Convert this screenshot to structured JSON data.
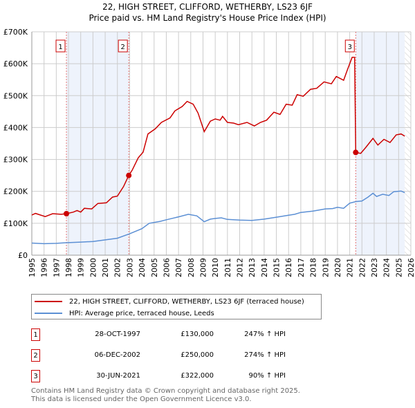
{
  "title": "22, HIGH STREET, CLIFFORD, WETHERBY, LS23 6JF",
  "subtitle": "Price paid vs. HM Land Registry's House Price Index (HPI)",
  "colors": {
    "property": "#cc0000",
    "hpi": "#5b8fd4",
    "shade": "#eef3fc"
  },
  "chart_data": {
    "type": "line",
    "title": "22, HIGH STREET, CLIFFORD, WETHERBY, LS23 6JF — Price paid vs. HM Land Registry's House Price Index (HPI)",
    "xlim": [
      1995,
      2026
    ],
    "ylim": [
      0,
      700000
    ],
    "x_ticks": [
      "1995",
      "1996",
      "1997",
      "1998",
      "1999",
      "2000",
      "2001",
      "2002",
      "2003",
      "2004",
      "2005",
      "2006",
      "2007",
      "2008",
      "2009",
      "2010",
      "2011",
      "2012",
      "2013",
      "2014",
      "2015",
      "2016",
      "2017",
      "2018",
      "2019",
      "2020",
      "2021",
      "2022",
      "2023",
      "2024",
      "2025",
      "2026"
    ],
    "y_ticks": [
      {
        "v": 0,
        "label": "£0"
      },
      {
        "v": 100000,
        "label": "£100K"
      },
      {
        "v": 200000,
        "label": "£200K"
      },
      {
        "v": 300000,
        "label": "£300K"
      },
      {
        "v": 400000,
        "label": "£400K"
      },
      {
        "v": 500000,
        "label": "£500K"
      },
      {
        "v": 600000,
        "label": "£600K"
      },
      {
        "v": 700000,
        "label": "£700K"
      }
    ],
    "grid": true,
    "series": [
      {
        "name": "22, HIGH STREET, CLIFFORD, WETHERBY, LS23 6JF (terraced house)",
        "points": [
          [
            1995.0,
            126
          ],
          [
            1995.3,
            131
          ],
          [
            1996.1,
            121
          ],
          [
            1996.7,
            130
          ],
          [
            1997.4,
            128
          ],
          [
            1997.83,
            130
          ],
          [
            1998.4,
            135
          ],
          [
            1998.7,
            140
          ],
          [
            1999.0,
            135
          ],
          [
            1999.3,
            147
          ],
          [
            1999.9,
            145
          ],
          [
            2000.4,
            162
          ],
          [
            2001.1,
            164
          ],
          [
            2001.6,
            182
          ],
          [
            2002.0,
            185
          ],
          [
            2002.5,
            215
          ],
          [
            2002.93,
            250
          ],
          [
            2003.2,
            266
          ],
          [
            2003.7,
            305
          ],
          [
            2004.1,
            323
          ],
          [
            2004.5,
            380
          ],
          [
            2005.1,
            396
          ],
          [
            2005.6,
            416
          ],
          [
            2006.3,
            430
          ],
          [
            2006.7,
            452
          ],
          [
            2007.3,
            466
          ],
          [
            2007.7,
            482
          ],
          [
            2008.2,
            473
          ],
          [
            2008.6,
            445
          ],
          [
            2009.1,
            387
          ],
          [
            2009.6,
            420
          ],
          [
            2010.0,
            427
          ],
          [
            2010.4,
            423
          ],
          [
            2010.6,
            435
          ],
          [
            2011.0,
            416
          ],
          [
            2011.5,
            414
          ],
          [
            2011.9,
            409
          ],
          [
            2012.6,
            416
          ],
          [
            2013.2,
            405
          ],
          [
            2013.7,
            416
          ],
          [
            2014.2,
            423
          ],
          [
            2014.8,
            448
          ],
          [
            2015.3,
            441
          ],
          [
            2015.8,
            473
          ],
          [
            2016.3,
            470
          ],
          [
            2016.7,
            503
          ],
          [
            2017.2,
            498
          ],
          [
            2017.8,
            520
          ],
          [
            2018.3,
            523
          ],
          [
            2018.9,
            543
          ],
          [
            2019.5,
            537
          ],
          [
            2019.9,
            560
          ],
          [
            2020.5,
            548
          ],
          [
            2020.8,
            580
          ],
          [
            2021.2,
            620
          ],
          [
            2021.4,
            620
          ],
          [
            2021.49,
            322
          ],
          [
            2021.9,
            319
          ],
          [
            2022.3,
            337
          ],
          [
            2022.9,
            366
          ],
          [
            2023.3,
            345
          ],
          [
            2023.8,
            363
          ],
          [
            2024.3,
            353
          ],
          [
            2024.8,
            377
          ],
          [
            2025.2,
            380
          ],
          [
            2025.5,
            373
          ]
        ]
      },
      {
        "name": "HPI: Average price, terraced house, Leeds",
        "points": [
          [
            1995.0,
            38
          ],
          [
            1996.0,
            36
          ],
          [
            1997.0,
            37
          ],
          [
            1997.8,
            39
          ],
          [
            1999.0,
            41
          ],
          [
            2000.0,
            43
          ],
          [
            2001.0,
            48
          ],
          [
            2002.0,
            53
          ],
          [
            2003.0,
            67
          ],
          [
            2004.0,
            83
          ],
          [
            2004.6,
            100
          ],
          [
            2005.5,
            106
          ],
          [
            2006.0,
            111
          ],
          [
            2007.0,
            120
          ],
          [
            2007.8,
            128
          ],
          [
            2008.5,
            123
          ],
          [
            2009.1,
            105
          ],
          [
            2009.6,
            113
          ],
          [
            2010.0,
            115
          ],
          [
            2010.5,
            117
          ],
          [
            2011.0,
            112
          ],
          [
            2012.0,
            110
          ],
          [
            2013.0,
            109
          ],
          [
            2014.0,
            113
          ],
          [
            2015.0,
            119
          ],
          [
            2016.0,
            125
          ],
          [
            2016.5,
            128
          ],
          [
            2017.0,
            134
          ],
          [
            2018.0,
            138
          ],
          [
            2019.0,
            145
          ],
          [
            2019.6,
            146
          ],
          [
            2020.0,
            150
          ],
          [
            2020.5,
            147
          ],
          [
            2021.0,
            163
          ],
          [
            2021.5,
            168
          ],
          [
            2022.0,
            170
          ],
          [
            2022.5,
            182
          ],
          [
            2022.9,
            194
          ],
          [
            2023.2,
            184
          ],
          [
            2023.7,
            191
          ],
          [
            2024.2,
            187
          ],
          [
            2024.6,
            199
          ],
          [
            2025.2,
            201
          ],
          [
            2025.5,
            196
          ]
        ]
      }
    ],
    "y_units": "thousands GBP",
    "sales": [
      {
        "id": "1",
        "x": 1997.83,
        "y": 130
      },
      {
        "id": "2",
        "x": 2002.93,
        "y": 250
      },
      {
        "id": "3",
        "x": 2021.49,
        "y": 322
      }
    ],
    "shaded_ranges": [
      [
        1997.83,
        2002.93
      ],
      [
        2021.49,
        2025.5
      ]
    ],
    "hatched_from": 2025.5,
    "legend_position": "below"
  },
  "legend": [
    {
      "label": "22, HIGH STREET, CLIFFORD, WETHERBY, LS23 6JF (terraced house)"
    },
    {
      "label": "HPI: Average price, terraced house, Leeds"
    }
  ],
  "transactions": [
    {
      "num": "1",
      "date": "28-OCT-1997",
      "price": "£130,000",
      "hpi": "247% ↑ HPI"
    },
    {
      "num": "2",
      "date": "06-DEC-2002",
      "price": "£250,000",
      "hpi": "274% ↑ HPI"
    },
    {
      "num": "3",
      "date": "30-JUN-2021",
      "price": "£322,000",
      "hpi": "90% ↑ HPI"
    }
  ],
  "footer": {
    "line1": "Contains HM Land Registry data © Crown copyright and database right 2025.",
    "line2": "This data is licensed under the Open Government Licence v3.0."
  }
}
